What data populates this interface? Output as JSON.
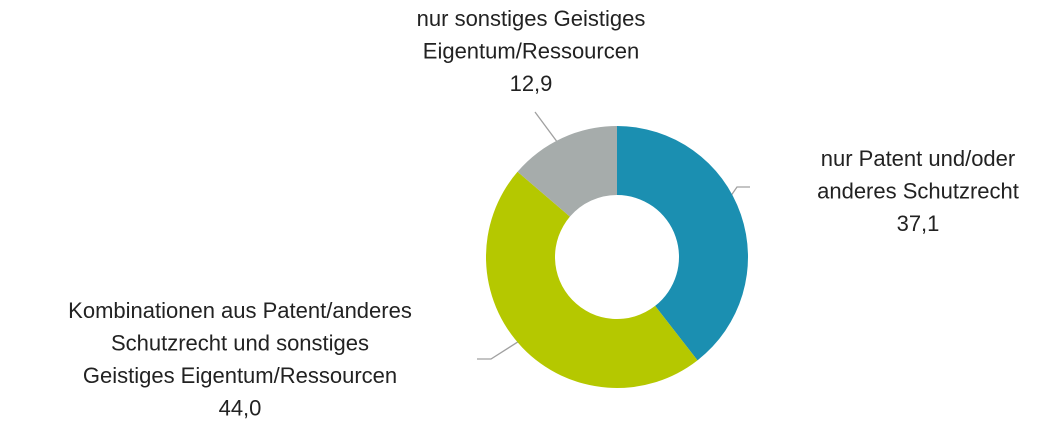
{
  "chart_data": {
    "type": "donut",
    "categories": [
      [
        "nur Patent und/oder",
        "anderes Schutzrecht"
      ],
      [
        "Kombinationen aus Patent/anderes",
        "Schutzrecht und sonstiges",
        "Geistiges Eigentum/Ressourcen"
      ],
      [
        "nur sonstiges Geistiges",
        "Eigentum/Ressourcen"
      ]
    ],
    "values": [
      37.1,
      44.0,
      12.9
    ],
    "value_labels": [
      "37,1",
      "44,0",
      "12,9"
    ],
    "colors": [
      "#1b8fb1",
      "#b5c800",
      "#a6acab"
    ]
  }
}
